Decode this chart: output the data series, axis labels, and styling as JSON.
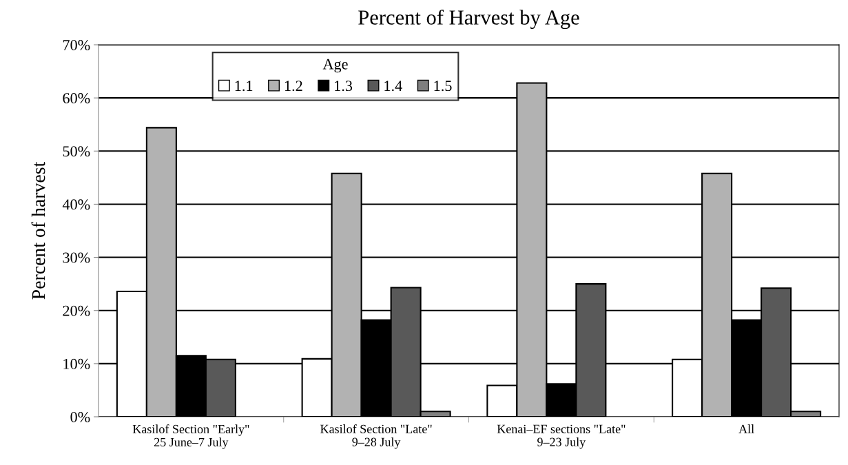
{
  "chart_data": {
    "type": "bar",
    "title": "Percent of Harvest by Age",
    "ylabel": "Percent of harvest",
    "legend_title": "Age",
    "categories": [
      "Kasilof Section \"Early\"\n25 June–7 July",
      "Kasilof Section \"Late\"\n9–28 July",
      "Kenai–EF sections \"Late\"\n9–23 July",
      "All"
    ],
    "series": [
      {
        "name": "1.1",
        "color": "#ffffff",
        "values": [
          23.6,
          10.9,
          5.9,
          10.8
        ]
      },
      {
        "name": "1.2",
        "color": "#b2b2b2",
        "values": [
          54.4,
          45.8,
          62.8,
          45.8
        ]
      },
      {
        "name": "1.3",
        "color": "#000000",
        "values": [
          11.5,
          18.2,
          6.2,
          18.2
        ]
      },
      {
        "name": "1.4",
        "color": "#595959",
        "values": [
          10.8,
          24.3,
          25.0,
          24.2
        ]
      },
      {
        "name": "1.5",
        "color": "#7f7f7f",
        "values": [
          null,
          1.0,
          null,
          1.0
        ]
      }
    ],
    "ylim": [
      0,
      70
    ],
    "yticks": [
      {
        "value": 0,
        "label": "0%"
      },
      {
        "value": 10,
        "label": "10%"
      },
      {
        "value": 20,
        "label": "20%"
      },
      {
        "value": 30,
        "label": "30%"
      },
      {
        "value": 40,
        "label": "40%"
      },
      {
        "value": 50,
        "label": "50%"
      },
      {
        "value": 60,
        "label": "60%"
      },
      {
        "value": 70,
        "label": "70%"
      }
    ],
    "grid": "y",
    "legend": "top"
  }
}
